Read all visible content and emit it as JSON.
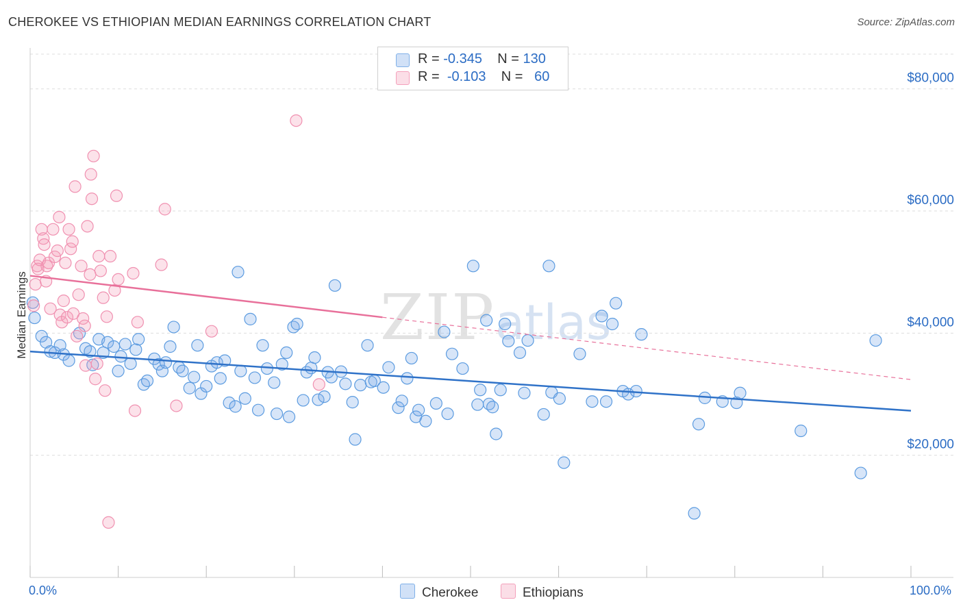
{
  "title": "CHEROKEE VS ETHIOPIAN MEDIAN EARNINGS CORRELATION CHART",
  "source": "Source: ZipAtlas.com",
  "watermark": {
    "zip": "ZIP",
    "atlas": "atlas"
  },
  "legend": {
    "rows": [
      {
        "r_label": "R = ",
        "r_value": "-0.345",
        "n_label": "N = ",
        "n_value": "130",
        "color": "#7fb0e8"
      },
      {
        "r_label": "R = ",
        "r_value": "-0.103",
        "n_label": "N = ",
        "n_value": " 60",
        "color": "#f4a0bb"
      }
    ]
  },
  "bottom_legend": {
    "cherokee": "Cherokee",
    "ethiopians": "Ethiopians"
  },
  "x_ticks": {
    "left": "0.0%",
    "right": "100.0%"
  },
  "chart_data": {
    "type": "scatter",
    "title": "CHEROKEE VS ETHIOPIAN MEDIAN EARNINGS CORRELATION CHART",
    "xlabel": "",
    "ylabel": "Median Earnings",
    "xlim": [
      0,
      100
    ],
    "ylim": [
      0,
      87000
    ],
    "y_ticks": [
      {
        "value": 20000,
        "label": "$20,000"
      },
      {
        "value": 40000,
        "label": "$40,000"
      },
      {
        "value": 60000,
        "label": "$60,000"
      },
      {
        "value": 80000,
        "label": "$80,000"
      }
    ],
    "grid": true,
    "legend_position": "top-center",
    "series": [
      {
        "name": "Cherokee",
        "color": "#5b9be0",
        "fill": "rgba(122,170,232,0.30)",
        "trend": {
          "x0": 0,
          "y0": 37000,
          "x1": 100,
          "y1": 27300,
          "solid_to": 100
        },
        "points": [
          [
            0.3,
            45000
          ],
          [
            0.5,
            42500
          ],
          [
            1.3,
            39500
          ],
          [
            1.8,
            38500
          ],
          [
            2.3,
            37000
          ],
          [
            2.8,
            36800
          ],
          [
            3.4,
            38000
          ],
          [
            3.8,
            36500
          ],
          [
            4.4,
            35500
          ],
          [
            5.6,
            40000
          ],
          [
            6.3,
            37500
          ],
          [
            6.8,
            37000
          ],
          [
            7.1,
            34800
          ],
          [
            7.8,
            39000
          ],
          [
            8.3,
            36800
          ],
          [
            8.8,
            38500
          ],
          [
            9.5,
            37800
          ],
          [
            10.0,
            33800
          ],
          [
            10.3,
            36200
          ],
          [
            10.8,
            38200
          ],
          [
            11.4,
            35000
          ],
          [
            12.0,
            37300
          ],
          [
            12.3,
            39000
          ],
          [
            12.9,
            31600
          ],
          [
            13.3,
            32200
          ],
          [
            14.1,
            35800
          ],
          [
            14.6,
            34900
          ],
          [
            15.0,
            33800
          ],
          [
            15.4,
            35200
          ],
          [
            15.9,
            37800
          ],
          [
            16.3,
            41000
          ],
          [
            16.9,
            34400
          ],
          [
            17.3,
            33800
          ],
          [
            18.1,
            31000
          ],
          [
            18.6,
            32800
          ],
          [
            19.0,
            38000
          ],
          [
            19.4,
            30100
          ],
          [
            20.0,
            31300
          ],
          [
            20.6,
            34600
          ],
          [
            21.2,
            35200
          ],
          [
            21.6,
            32600
          ],
          [
            22.1,
            35500
          ],
          [
            22.6,
            28600
          ],
          [
            23.3,
            28000
          ],
          [
            23.6,
            50000
          ],
          [
            23.9,
            33800
          ],
          [
            24.4,
            29300
          ],
          [
            25.0,
            42300
          ],
          [
            25.5,
            32700
          ],
          [
            25.9,
            27400
          ],
          [
            26.4,
            38000
          ],
          [
            26.9,
            34200
          ],
          [
            27.7,
            31900
          ],
          [
            28.0,
            26800
          ],
          [
            28.6,
            34900
          ],
          [
            29.1,
            36800
          ],
          [
            29.4,
            26300
          ],
          [
            29.9,
            41000
          ],
          [
            30.3,
            41500
          ],
          [
            31.0,
            29000
          ],
          [
            31.4,
            33600
          ],
          [
            31.9,
            34300
          ],
          [
            32.3,
            36000
          ],
          [
            32.7,
            29100
          ],
          [
            33.4,
            29600
          ],
          [
            33.8,
            33600
          ],
          [
            34.2,
            32800
          ],
          [
            34.6,
            47800
          ],
          [
            35.3,
            33700
          ],
          [
            35.8,
            31700
          ],
          [
            36.6,
            28700
          ],
          [
            36.9,
            22600
          ],
          [
            37.5,
            31500
          ],
          [
            38.3,
            38000
          ],
          [
            38.7,
            32000
          ],
          [
            39.1,
            32200
          ],
          [
            40.1,
            31100
          ],
          [
            40.7,
            34400
          ],
          [
            41.8,
            27800
          ],
          [
            42.2,
            28900
          ],
          [
            42.8,
            32600
          ],
          [
            43.3,
            35900
          ],
          [
            43.8,
            26300
          ],
          [
            44.1,
            27400
          ],
          [
            44.9,
            25600
          ],
          [
            46.1,
            28500
          ],
          [
            47.0,
            40200
          ],
          [
            47.4,
            26800
          ],
          [
            47.9,
            36600
          ],
          [
            49.1,
            34200
          ],
          [
            50.3,
            51000
          ],
          [
            50.8,
            28300
          ],
          [
            51.1,
            30700
          ],
          [
            51.8,
            42100
          ],
          [
            52.1,
            28400
          ],
          [
            52.5,
            27900
          ],
          [
            52.9,
            23500
          ],
          [
            53.4,
            30700
          ],
          [
            53.9,
            41500
          ],
          [
            54.3,
            38700
          ],
          [
            55.6,
            36800
          ],
          [
            56.1,
            30200
          ],
          [
            56.5,
            38800
          ],
          [
            58.3,
            26700
          ],
          [
            58.9,
            51000
          ],
          [
            59.2,
            30300
          ],
          [
            60.1,
            29300
          ],
          [
            60.6,
            18800
          ],
          [
            62.4,
            36600
          ],
          [
            63.8,
            28800
          ],
          [
            64.9,
            42800
          ],
          [
            65.4,
            28800
          ],
          [
            66.1,
            41500
          ],
          [
            66.5,
            44900
          ],
          [
            67.3,
            30500
          ],
          [
            67.9,
            30000
          ],
          [
            68.8,
            30500
          ],
          [
            69.4,
            39800
          ],
          [
            75.4,
            10500
          ],
          [
            75.9,
            25100
          ],
          [
            76.6,
            29400
          ],
          [
            78.6,
            28800
          ],
          [
            80.2,
            28600
          ],
          [
            80.6,
            30200
          ],
          [
            87.5,
            24000
          ],
          [
            94.3,
            17100
          ],
          [
            96.0,
            38800
          ]
        ]
      },
      {
        "name": "Ethiopians",
        "color": "#f090b0",
        "fill": "rgba(244,160,187,0.30)",
        "trend": {
          "x0": 0,
          "y0": 49400,
          "x1": 100,
          "y1": 32400,
          "solid_to": 40
        },
        "points": [
          [
            0.4,
            44500
          ],
          [
            0.6,
            48000
          ],
          [
            0.8,
            51000
          ],
          [
            0.9,
            50500
          ],
          [
            1.1,
            52000
          ],
          [
            1.3,
            57000
          ],
          [
            1.5,
            55500
          ],
          [
            1.6,
            54500
          ],
          [
            1.8,
            48500
          ],
          [
            1.9,
            51000
          ],
          [
            2.1,
            51500
          ],
          [
            2.3,
            44000
          ],
          [
            2.6,
            57000
          ],
          [
            2.8,
            52500
          ],
          [
            3.1,
            53500
          ],
          [
            3.3,
            59000
          ],
          [
            3.4,
            43000
          ],
          [
            3.6,
            41800
          ],
          [
            3.8,
            45300
          ],
          [
            4.0,
            51500
          ],
          [
            4.2,
            42600
          ],
          [
            4.4,
            57000
          ],
          [
            4.6,
            53800
          ],
          [
            4.8,
            55000
          ],
          [
            4.9,
            43200
          ],
          [
            5.1,
            64000
          ],
          [
            5.3,
            39500
          ],
          [
            5.5,
            46300
          ],
          [
            5.8,
            51000
          ],
          [
            6.0,
            42400
          ],
          [
            6.2,
            41200
          ],
          [
            6.3,
            34700
          ],
          [
            6.5,
            57500
          ],
          [
            6.8,
            49600
          ],
          [
            6.9,
            66000
          ],
          [
            7.0,
            62000
          ],
          [
            7.2,
            69000
          ],
          [
            7.4,
            32500
          ],
          [
            7.6,
            35000
          ],
          [
            7.8,
            52600
          ],
          [
            8.0,
            50200
          ],
          [
            8.3,
            45800
          ],
          [
            8.5,
            30600
          ],
          [
            8.7,
            42700
          ],
          [
            8.9,
            9000
          ],
          [
            9.1,
            52600
          ],
          [
            9.6,
            47000
          ],
          [
            9.8,
            62500
          ],
          [
            10.0,
            48800
          ],
          [
            11.7,
            49800
          ],
          [
            11.9,
            27300
          ],
          [
            12.2,
            41800
          ],
          [
            14.9,
            51200
          ],
          [
            15.3,
            60300
          ],
          [
            16.6,
            28100
          ],
          [
            20.6,
            40300
          ],
          [
            30.2,
            74800
          ],
          [
            32.8,
            31600
          ]
        ]
      }
    ]
  }
}
